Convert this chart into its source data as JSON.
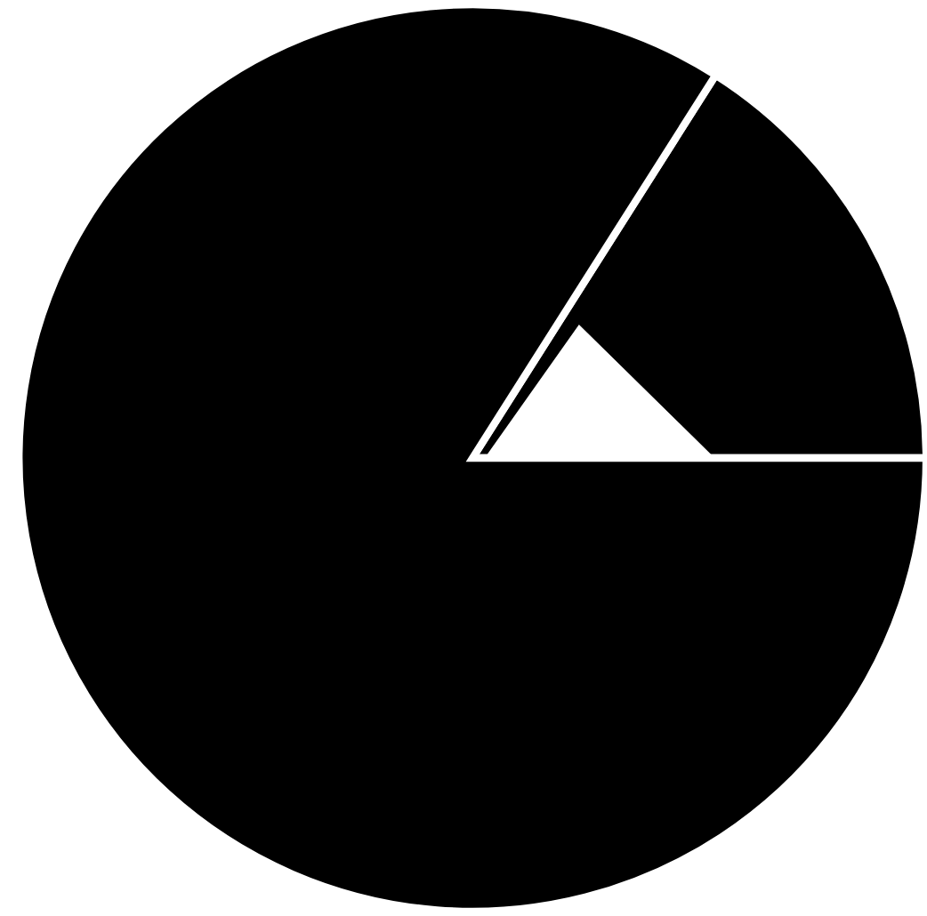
{
  "chart_data": {
    "type": "pie",
    "categories": [
      null,
      null
    ],
    "values": [
      16,
      84
    ],
    "colors": [
      "#000000",
      "#000000"
    ]
  }
}
